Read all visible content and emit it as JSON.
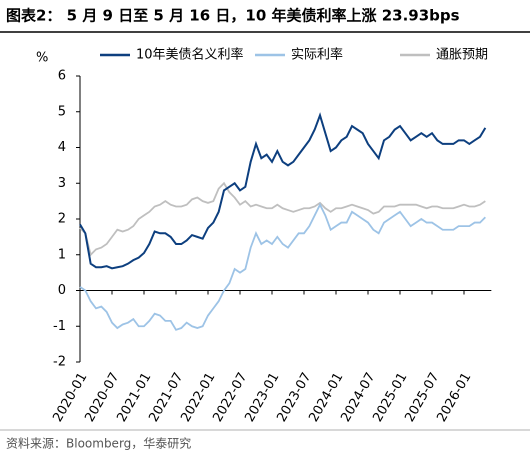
{
  "chart_data": {
    "type": "line",
    "title": "图表2：  5 月 9 日至 5 月 16 日，10 年美债利率上涨 23.93bps",
    "y_label": "%",
    "source": "资料来源：Bloomberg，华泰研究",
    "x": [
      "2020-01",
      "2020-02",
      "2020-03",
      "2020-04",
      "2020-05",
      "2020-06",
      "2020-07",
      "2020-08",
      "2020-09",
      "2020-10",
      "2020-11",
      "2020-12",
      "2021-01",
      "2021-02",
      "2021-03",
      "2021-04",
      "2021-05",
      "2021-06",
      "2021-07",
      "2021-08",
      "2021-09",
      "2021-10",
      "2021-11",
      "2021-12",
      "2022-01",
      "2022-02",
      "2022-03",
      "2022-04",
      "2022-05",
      "2022-06",
      "2022-07",
      "2022-08",
      "2022-09",
      "2022-10",
      "2022-11",
      "2022-12",
      "2023-01",
      "2023-02",
      "2023-03",
      "2023-04",
      "2023-05",
      "2023-06",
      "2023-07",
      "2023-08",
      "2023-09",
      "2023-10",
      "2023-11",
      "2023-12",
      "2024-01",
      "2024-02",
      "2024-03",
      "2024-04",
      "2024-05",
      "2024-06",
      "2024-07",
      "2024-08",
      "2024-09",
      "2024-10",
      "2024-11",
      "2024-12",
      "2025-01",
      "2025-02",
      "2025-03",
      "2025-04",
      "2025-05",
      "2025-06",
      "2025-07",
      "2025-08",
      "2025-09",
      "2025-10",
      "2025-11",
      "2025-12",
      "2026-01",
      "2026-02",
      "2026-03",
      "2026-04",
      "2026-05"
    ],
    "xticks": [
      "2020-01",
      "2020-07",
      "2021-01",
      "2021-07",
      "2022-01",
      "2022-07",
      "2023-01",
      "2023-07",
      "2024-01",
      "2024-07",
      "2025-01",
      "2025-07",
      "2026-01"
    ],
    "ylim": [
      -2,
      6
    ],
    "yticks": [
      -2,
      -1,
      0,
      1,
      2,
      3,
      4,
      5,
      6
    ],
    "series": [
      {
        "name": "10年美债名义利率",
        "color": "#0d3f7f",
        "values": [
          1.85,
          1.6,
          0.75,
          0.65,
          0.65,
          0.68,
          0.62,
          0.65,
          0.68,
          0.75,
          0.85,
          0.92,
          1.05,
          1.3,
          1.65,
          1.6,
          1.6,
          1.5,
          1.3,
          1.3,
          1.4,
          1.55,
          1.5,
          1.45,
          1.75,
          1.9,
          2.2,
          2.8,
          2.9,
          3.0,
          2.8,
          2.9,
          3.6,
          4.1,
          3.7,
          3.8,
          3.6,
          3.9,
          3.6,
          3.5,
          3.6,
          3.8,
          4.0,
          4.2,
          4.5,
          4.9,
          4.4,
          3.9,
          4.0,
          4.2,
          4.3,
          4.6,
          4.5,
          4.4,
          4.1,
          3.9,
          3.7,
          4.2,
          4.3,
          4.5,
          4.6,
          4.4,
          4.2,
          4.3,
          4.4,
          4.3,
          4.4,
          4.2,
          4.1,
          4.1,
          4.1,
          4.2,
          4.2,
          4.1,
          4.2,
          4.3,
          4.55
        ]
      },
      {
        "name": "实际利率",
        "color": "#9dc3e6",
        "values": [
          0.1,
          0.0,
          -0.3,
          -0.5,
          -0.45,
          -0.6,
          -0.9,
          -1.05,
          -0.95,
          -0.9,
          -0.8,
          -1.0,
          -1.0,
          -0.85,
          -0.65,
          -0.7,
          -0.85,
          -0.85,
          -1.1,
          -1.05,
          -0.9,
          -1.0,
          -1.05,
          -1.0,
          -0.7,
          -0.5,
          -0.3,
          0.0,
          0.2,
          0.6,
          0.5,
          0.6,
          1.2,
          1.6,
          1.3,
          1.4,
          1.3,
          1.5,
          1.3,
          1.2,
          1.4,
          1.6,
          1.6,
          1.8,
          2.1,
          2.4,
          2.1,
          1.7,
          1.8,
          1.9,
          1.9,
          2.2,
          2.1,
          2.0,
          1.9,
          1.7,
          1.6,
          1.9,
          2.0,
          2.1,
          2.2,
          2.0,
          1.8,
          1.9,
          2.0,
          1.9,
          1.9,
          1.8,
          1.7,
          1.7,
          1.7,
          1.8,
          1.8,
          1.8,
          1.9,
          1.9,
          2.05
        ]
      },
      {
        "name": "通胀预期",
        "color": "#bfbfbf",
        "values": [
          1.75,
          1.6,
          1.0,
          1.15,
          1.2,
          1.3,
          1.5,
          1.7,
          1.65,
          1.7,
          1.8,
          2.0,
          2.1,
          2.2,
          2.35,
          2.4,
          2.5,
          2.4,
          2.35,
          2.35,
          2.4,
          2.55,
          2.6,
          2.5,
          2.45,
          2.5,
          2.85,
          3.0,
          2.75,
          2.6,
          2.4,
          2.5,
          2.35,
          2.4,
          2.35,
          2.3,
          2.3,
          2.4,
          2.3,
          2.25,
          2.2,
          2.25,
          2.3,
          2.3,
          2.35,
          2.45,
          2.3,
          2.2,
          2.3,
          2.3,
          2.35,
          2.4,
          2.35,
          2.3,
          2.25,
          2.15,
          2.2,
          2.35,
          2.35,
          2.35,
          2.4,
          2.4,
          2.4,
          2.4,
          2.35,
          2.3,
          2.35,
          2.35,
          2.3,
          2.3,
          2.3,
          2.35,
          2.4,
          2.35,
          2.35,
          2.4,
          2.5
        ]
      }
    ]
  }
}
